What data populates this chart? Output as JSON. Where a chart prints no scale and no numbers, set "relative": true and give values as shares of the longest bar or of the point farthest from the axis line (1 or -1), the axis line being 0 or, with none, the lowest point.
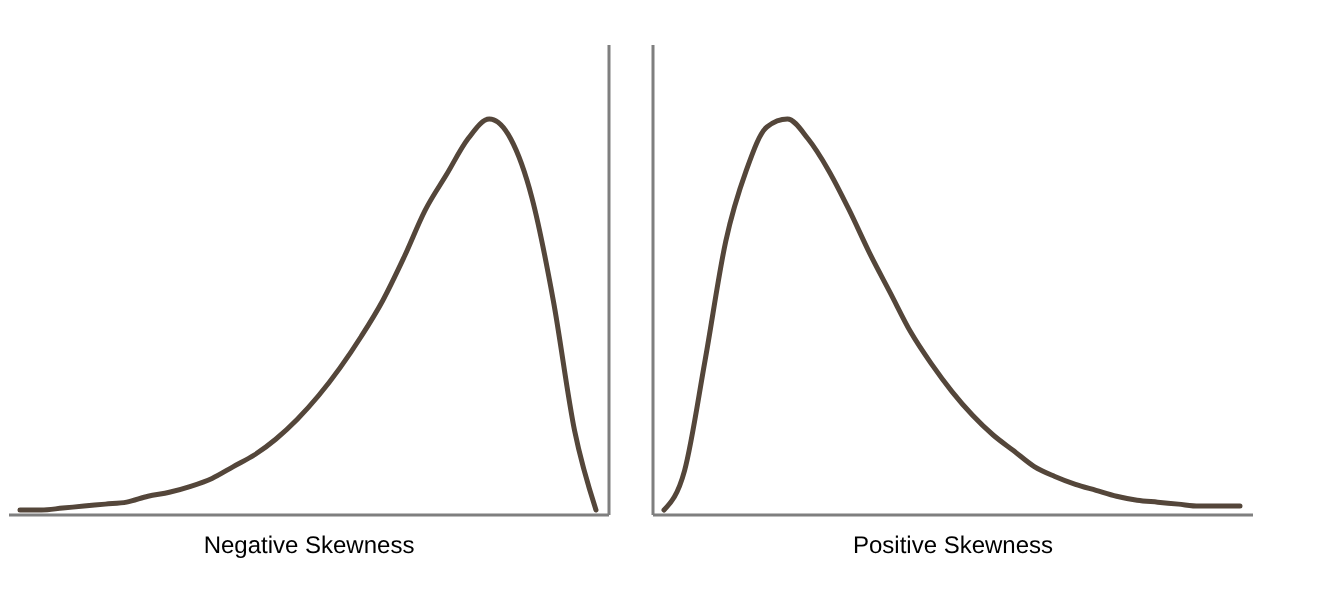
{
  "chart_data": [
    {
      "type": "line",
      "relative": true,
      "xlabel": "Negative Skewness",
      "categories": [
        null,
        null,
        null,
        null,
        null,
        null,
        null,
        null,
        null,
        null,
        null,
        null,
        null,
        null,
        null,
        null,
        null,
        null,
        null,
        null,
        null,
        null,
        null,
        null,
        null,
        null,
        null,
        null
      ],
      "series": [
        {
          "color": "#54463a",
          "values": [
            0.01,
            0.01,
            0.015,
            0.02,
            0.025,
            0.03,
            0.045,
            0.055,
            0.07,
            0.09,
            0.12,
            0.15,
            0.19,
            0.24,
            0.3,
            0.37,
            0.45,
            0.54,
            0.65,
            0.77,
            0.86,
            0.95,
            1.0,
            0.95,
            0.8,
            0.54,
            0.21,
            0.01
          ]
        }
      ],
      "grid": false,
      "tick_labels": false,
      "marker": "none",
      "line_style": "solid"
    },
    {
      "type": "line",
      "relative": true,
      "xlabel": "Positive Skewness",
      "categories": [
        null,
        null,
        null,
        null,
        null,
        null,
        null,
        null,
        null,
        null,
        null,
        null,
        null,
        null,
        null,
        null,
        null,
        null,
        null,
        null,
        null,
        null,
        null,
        null,
        null,
        null,
        null,
        null,
        null
      ],
      "series": [
        {
          "color": "#54463a",
          "values": [
            0.01,
            0.11,
            0.39,
            0.69,
            0.87,
            0.98,
            1.0,
            0.95,
            0.87,
            0.77,
            0.66,
            0.56,
            0.46,
            0.38,
            0.31,
            0.25,
            0.2,
            0.16,
            0.12,
            0.095,
            0.075,
            0.06,
            0.045,
            0.035,
            0.03,
            0.025,
            0.02,
            0.02,
            0.02
          ]
        }
      ],
      "grid": false,
      "tick_labels": false,
      "marker": "none",
      "line_style": "solid"
    }
  ]
}
